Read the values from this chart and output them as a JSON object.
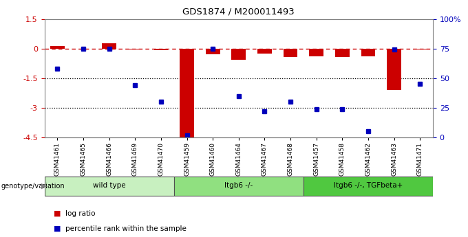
{
  "title": "GDS1874 / M200011493",
  "samples": [
    "GSM41461",
    "GSM41465",
    "GSM41466",
    "GSM41469",
    "GSM41470",
    "GSM41459",
    "GSM41460",
    "GSM41464",
    "GSM41467",
    "GSM41468",
    "GSM41457",
    "GSM41458",
    "GSM41462",
    "GSM41463",
    "GSM41471"
  ],
  "log_ratio": [
    0.12,
    0.0,
    0.26,
    -0.05,
    -0.08,
    -4.5,
    -0.3,
    -0.55,
    -0.25,
    -0.42,
    -0.38,
    -0.42,
    -0.38,
    -2.1,
    -0.05
  ],
  "percentile_rank": [
    58,
    75,
    75,
    44,
    30,
    2,
    75,
    35,
    22,
    30,
    24,
    24,
    5,
    74,
    45
  ],
  "groups": [
    {
      "label": "wild type",
      "start": 0,
      "end": 5,
      "color": "#c8f0c0"
    },
    {
      "label": "ltgb6 -/-",
      "start": 5,
      "end": 10,
      "color": "#90e080"
    },
    {
      "label": "ltgb6 -/-, TGFbeta+",
      "start": 10,
      "end": 15,
      "color": "#50c840"
    }
  ],
  "left_ylim": [
    -4.5,
    1.5
  ],
  "right_ylim": [
    0,
    100
  ],
  "left_yticks": [
    1.5,
    0,
    -1.5,
    -3,
    -4.5
  ],
  "right_yticks": [
    0,
    25,
    50,
    75,
    100
  ],
  "right_yticklabels": [
    "0",
    "25",
    "50",
    "75",
    "100%"
  ],
  "hline_y": 0,
  "dotted_lines": [
    -1.5,
    -3
  ],
  "bar_color": "#cc0000",
  "dot_color": "#0000bb",
  "legend_items": [
    "log ratio",
    "percentile rank within the sample"
  ]
}
